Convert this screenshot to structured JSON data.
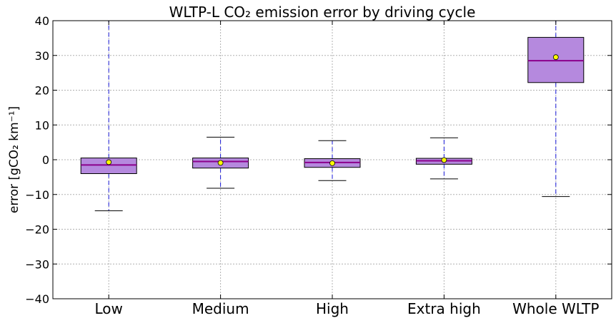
{
  "chart_data": {
    "type": "box",
    "title": "WLTP-L CO₂ emission error by driving cycle",
    "ylabel": "error [gCO₂ km⁻¹]",
    "xlabel": "",
    "ylim": [
      -40,
      40
    ],
    "yticks": [
      -40,
      -30,
      -20,
      -10,
      0,
      10,
      20,
      30,
      40
    ],
    "ytick_labels": [
      "−40",
      "−30",
      "−20",
      "−10",
      "0",
      "10",
      "20",
      "30",
      "40"
    ],
    "grid": true,
    "categories": [
      "Low",
      "Medium",
      "High",
      "Extra high",
      "Whole WLTP"
    ],
    "boxes": [
      {
        "category": "Low",
        "whisker_low": -14.7,
        "q1": -4.0,
        "median": -1.5,
        "q3": 0.5,
        "whisker_high": 40,
        "mean": -0.7
      },
      {
        "category": "Medium",
        "whisker_low": -8.2,
        "q1": -2.4,
        "median": -0.5,
        "q3": 0.5,
        "whisker_high": 6.5,
        "mean": -0.9
      },
      {
        "category": "High",
        "whisker_low": -6.0,
        "q1": -2.2,
        "median": -0.8,
        "q3": 0.3,
        "whisker_high": 5.5,
        "mean": -1.0
      },
      {
        "category": "Extra high",
        "whisker_low": -5.5,
        "q1": -1.3,
        "median": -0.3,
        "q3": 0.4,
        "whisker_high": 6.3,
        "mean": -0.1
      },
      {
        "category": "Whole WLTP",
        "whisker_low": -10.6,
        "q1": 22.2,
        "median": 28.5,
        "q3": 35.2,
        "whisker_high": 40,
        "mean": 29.5
      }
    ],
    "colors": {
      "box_fill": "#b589de",
      "box_edge": "#000000",
      "median": "#8b008b",
      "whisker": "#1a1adb",
      "mean_marker": "#ffff00",
      "grid": "#b0b0b0"
    }
  }
}
